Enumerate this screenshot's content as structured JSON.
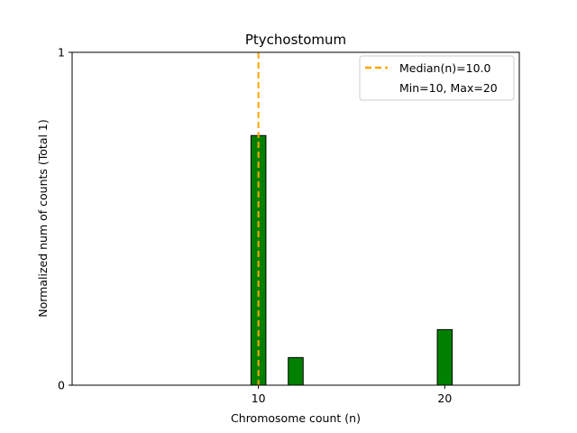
{
  "chart_data": {
    "type": "bar",
    "title": "Ptychostomum",
    "xlabel": "Chromosome count (n)",
    "ylabel": "Normalized num of counts     (Total 1)",
    "x": [
      10,
      12,
      20
    ],
    "values": [
      0.75,
      0.083,
      0.167
    ],
    "bar_width": 0.8,
    "bar_color": "#008000",
    "bar_edge_color": "#000000",
    "xlim": [
      0,
      24
    ],
    "ylim": [
      0,
      1
    ],
    "xticks": [
      10,
      20
    ],
    "xtick_labels": [
      "10",
      "20"
    ],
    "yticks": [
      0,
      1
    ],
    "ytick_labels": [
      "0",
      "1"
    ],
    "grid": false,
    "median": {
      "value": 10,
      "color": "#FFA500",
      "style": "dashed",
      "label": "Median(n)=10.0"
    },
    "legend": {
      "position": "top-right",
      "entries": [
        "Median(n)=10.0",
        "Min=10, Max=20"
      ]
    }
  }
}
